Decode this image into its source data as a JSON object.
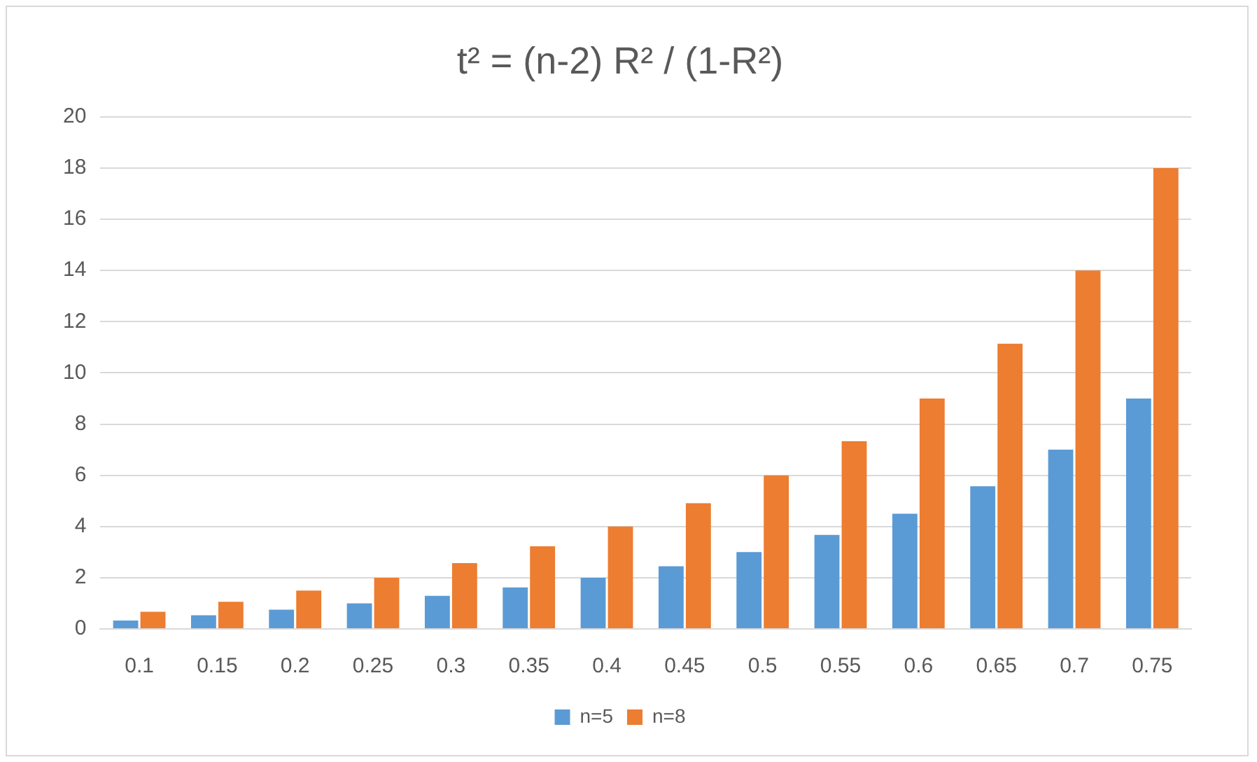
{
  "chart_data": {
    "type": "bar",
    "title": "t² = (n-2) R² / (1-R²)",
    "categories": [
      "0.1",
      "0.15",
      "0.2",
      "0.25",
      "0.3",
      "0.35",
      "0.4",
      "0.45",
      "0.5",
      "0.55",
      "0.6",
      "0.65",
      "0.7",
      "0.75"
    ],
    "series": [
      {
        "name": "n=5",
        "color": "#5b9bd5",
        "values": [
          0.33,
          0.53,
          0.75,
          1,
          1.29,
          1.62,
          2,
          2.45,
          3,
          3.67,
          4.5,
          5.57,
          7,
          9
        ]
      },
      {
        "name": "n=8",
        "color": "#ed7d31",
        "values": [
          0.67,
          1.06,
          1.5,
          2,
          2.57,
          3.23,
          4,
          4.91,
          6,
          7.33,
          9,
          11.14,
          14,
          18
        ]
      }
    ],
    "ylim": [
      0,
      20
    ],
    "yticks": [
      0,
      2,
      4,
      6,
      8,
      10,
      12,
      14,
      16,
      18,
      20
    ],
    "grid": "y",
    "legend": "bottom"
  }
}
